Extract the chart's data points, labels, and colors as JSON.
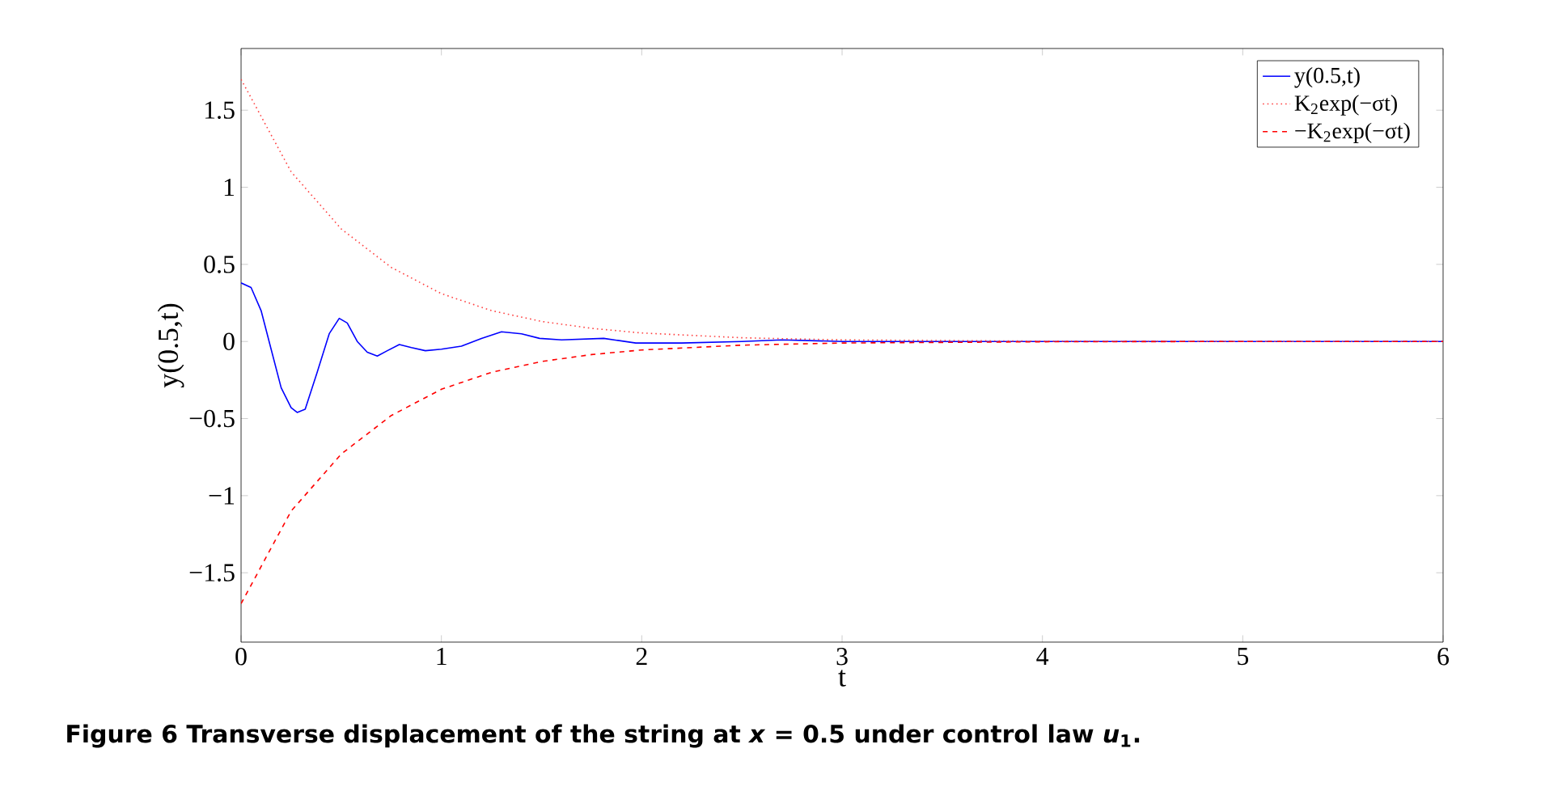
{
  "chart_data": {
    "type": "line",
    "xlabel": "t",
    "ylabel": "y(0.5,t)",
    "xlim": [
      0,
      6
    ],
    "ylim": [
      -1.95,
      1.9
    ],
    "xticks": [
      0,
      1,
      2,
      3,
      4,
      5,
      6
    ],
    "yticks": [
      {
        "value": -1.5,
        "label": "−1.5"
      },
      {
        "value": -1,
        "label": "−1"
      },
      {
        "value": -0.5,
        "label": "−0.5"
      },
      0,
      0.5,
      1,
      1.5
    ],
    "grid": false,
    "legend": "top right",
    "marker": "none",
    "series": [
      {
        "name": "y(0.5,t)",
        "color": "#0000ff",
        "line_style": "solid",
        "x": [
          0,
          0.05,
          0.1,
          0.15,
          0.2,
          0.25,
          0.28,
          0.32,
          0.38,
          0.44,
          0.49,
          0.53,
          0.58,
          0.63,
          0.68,
          0.73,
          0.79,
          0.85,
          0.92,
          1.0,
          1.1,
          1.2,
          1.3,
          1.4,
          1.49,
          1.6,
          1.81,
          1.97,
          2.2,
          2.5,
          2.7,
          3,
          4,
          5,
          6
        ],
        "values": [
          0.38,
          0.35,
          0.2,
          -0.05,
          -0.3,
          -0.43,
          -0.46,
          -0.44,
          -0.2,
          0.05,
          0.15,
          0.12,
          0.0,
          -0.07,
          -0.095,
          -0.06,
          -0.02,
          -0.04,
          -0.06,
          -0.05,
          -0.03,
          0.02,
          0.063,
          0.05,
          0.02,
          0.01,
          0.02,
          -0.01,
          -0.01,
          0.0,
          0.01,
          0.0,
          0.0,
          0.0,
          0.0
        ]
      },
      {
        "name": "K$_{2}$exp(−σt)",
        "color": "#ff4040",
        "line_style": "dotted",
        "x": [
          0,
          0.25,
          0.5,
          0.75,
          1,
          1.25,
          1.5,
          1.75,
          2,
          2.5,
          3,
          4,
          5,
          6
        ],
        "values": [
          1.7,
          1.1,
          0.73,
          0.48,
          0.31,
          0.2,
          0.13,
          0.085,
          0.055,
          0.024,
          0.01,
          0.002,
          0.0,
          0.0
        ]
      },
      {
        "name": "−K$_{2}$exp(−σt)",
        "color": "#ff0000",
        "line_style": "dashed",
        "x": [
          0,
          0.25,
          0.5,
          0.75,
          1,
          1.25,
          1.5,
          1.75,
          2,
          2.5,
          3,
          4,
          5,
          6
        ],
        "values": [
          -1.7,
          -1.1,
          -0.73,
          -0.48,
          -0.31,
          -0.2,
          -0.13,
          -0.085,
          -0.055,
          -0.024,
          -0.01,
          -0.002,
          0.0,
          0.0
        ]
      }
    ],
    "annotations": [
      "**Figure 6  Transverse displacement of the string at *x* = 0.5 under control law *u*$_{1}$.**"
    ]
  }
}
